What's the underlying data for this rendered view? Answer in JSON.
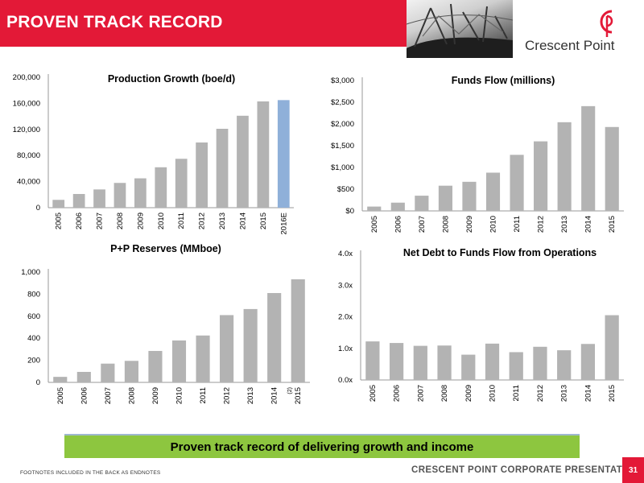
{
  "header": {
    "title": "PROVEN TRACK RECORD",
    "brand_name": "Crescent Point"
  },
  "colors": {
    "accent_red": "#e31937",
    "bar_gray": "#b3b3b3",
    "bar_forecast": "#8fb0d9",
    "callout_green": "#8dc63f"
  },
  "callout": {
    "text": "Proven track record of delivering growth and income"
  },
  "footer": {
    "footnote": "FOOTNOTES INCLUDED IN THE BACK AS ENDNOTES",
    "presentation_label": "CRESCENT POINT CORPORATE PRESENTATION",
    "page_number": "31"
  },
  "chart_data": [
    {
      "type": "bar",
      "title": "Production Growth (boe/d)",
      "categories": [
        "2005",
        "2006",
        "2007",
        "2008",
        "2009",
        "2010",
        "2011",
        "2012",
        "2013",
        "2014",
        "2015",
        "2016E"
      ],
      "values": [
        12000,
        21000,
        28000,
        38000,
        45000,
        62000,
        75000,
        100000,
        121000,
        141000,
        163000,
        165000
      ],
      "highlight_index": 11,
      "ylim": [
        0,
        200000
      ],
      "yticks": [
        0,
        40000,
        80000,
        120000,
        160000,
        200000
      ],
      "ytick_labels": [
        "0",
        "40,000",
        "80,000",
        "120,000",
        "160,000",
        "200,000"
      ],
      "grid": false
    },
    {
      "type": "bar",
      "title": "Funds Flow (millions)",
      "categories": [
        "2005",
        "2006",
        "2007",
        "2008",
        "2009",
        "2010",
        "2011",
        "2012",
        "2013",
        "2014",
        "2015"
      ],
      "values": [
        100,
        190,
        350,
        580,
        670,
        880,
        1290,
        1600,
        2040,
        2410,
        1930
      ],
      "ylim": [
        0,
        3000
      ],
      "yticks": [
        0,
        500,
        1000,
        1500,
        2000,
        2500,
        3000
      ],
      "ytick_labels": [
        "$0",
        "$500",
        "$1,000",
        "$1,500",
        "$2,000",
        "$2,500",
        "$3,000"
      ],
      "grid": false
    },
    {
      "type": "bar",
      "title": "P+P Reserves (MMboe)",
      "categories": [
        "2005",
        "2006",
        "2007",
        "2008",
        "2009",
        "2010",
        "2011",
        "2012",
        "2013",
        "2014",
        "2015"
      ],
      "values": [
        50,
        95,
        170,
        195,
        285,
        380,
        425,
        610,
        665,
        810,
        935
      ],
      "ylim": [
        0,
        1000
      ],
      "yticks": [
        0,
        200,
        400,
        600,
        800,
        1000
      ],
      "ytick_labels": [
        "0",
        "200",
        "400",
        "600",
        "800",
        "1,000"
      ],
      "annotations": [
        {
          "category": "2015",
          "text": "(2)"
        }
      ],
      "grid": false
    },
    {
      "type": "bar",
      "title": "Net Debt to Funds Flow from Operations",
      "categories": [
        "2005",
        "2006",
        "2007",
        "2008",
        "2009",
        "2010",
        "2011",
        "2012",
        "2013",
        "2014",
        "2015"
      ],
      "values": [
        1.22,
        1.17,
        1.08,
        1.09,
        0.8,
        1.15,
        0.88,
        1.05,
        0.94,
        1.14,
        2.05
      ],
      "ylim": [
        0,
        4
      ],
      "yticks": [
        0,
        1,
        2,
        3,
        4
      ],
      "ytick_labels": [
        "0.0x",
        "1.0x",
        "2.0x",
        "3.0x",
        "4.0x"
      ],
      "grid": false
    }
  ]
}
